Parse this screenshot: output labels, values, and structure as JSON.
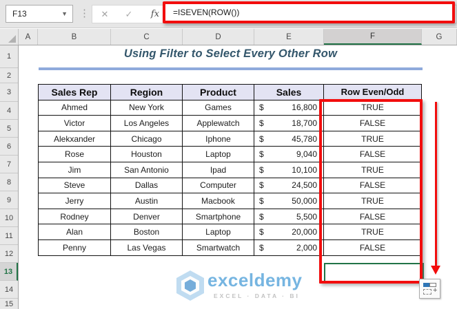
{
  "name_box_value": "F13",
  "formula_bar": {
    "formula": "=ISEVEN(ROW())",
    "cancel_icon": "✕",
    "enter_icon": "✓",
    "fx_icon": "fx",
    "menu_dots": "⋮"
  },
  "selection": {
    "active_cell": "F13",
    "selected_column": "F",
    "selected_row": "13"
  },
  "column_headers": [
    "A",
    "B",
    "C",
    "D",
    "E",
    "F",
    "G"
  ],
  "row_headers": [
    "1",
    "2",
    "3",
    "4",
    "5",
    "6",
    "7",
    "8",
    "9",
    "10",
    "11",
    "12",
    "13",
    "14",
    "15"
  ],
  "sheet": {
    "title": "Using Filter to Select Every Other Row",
    "table": {
      "headers": [
        "Sales Rep",
        "Region",
        "Product",
        "Sales",
        "Row Even/Odd"
      ],
      "rows": [
        {
          "rep": "Ahmed",
          "region": "New York",
          "product": "Games",
          "currency": "$",
          "sales": "16,800",
          "row_even_odd": "TRUE"
        },
        {
          "rep": "Victor",
          "region": "Los Angeles",
          "product": "Applewatch",
          "currency": "$",
          "sales": "18,700",
          "row_even_odd": "FALSE"
        },
        {
          "rep": "Alekxander",
          "region": "Chicago",
          "product": "Iphone",
          "currency": "$",
          "sales": "45,780",
          "row_even_odd": "TRUE"
        },
        {
          "rep": "Rose",
          "region": "Houston",
          "product": "Laptop",
          "currency": "$",
          "sales": "9,040",
          "row_even_odd": "FALSE"
        },
        {
          "rep": "Jim",
          "region": "San Antonio",
          "product": "Ipad",
          "currency": "$",
          "sales": "10,100",
          "row_even_odd": "TRUE"
        },
        {
          "rep": "Steve",
          "region": "Dallas",
          "product": "Computer",
          "currency": "$",
          "sales": "24,500",
          "row_even_odd": "FALSE"
        },
        {
          "rep": "Jerry",
          "region": "Austin",
          "product": "Macbook",
          "currency": "$",
          "sales": "50,000",
          "row_even_odd": "TRUE"
        },
        {
          "rep": "Rodney",
          "region": "Denver",
          "product": "Smartphone",
          "currency": "$",
          "sales": "5,500",
          "row_even_odd": "FALSE"
        },
        {
          "rep": "Alan",
          "region": "Boston",
          "product": "Laptop",
          "currency": "$",
          "sales": "20,000",
          "row_even_odd": "TRUE"
        },
        {
          "rep": "Penny",
          "region": "Las Vegas",
          "product": "Smartwatch",
          "currency": "$",
          "sales": "2,000",
          "row_even_odd": "FALSE"
        }
      ]
    }
  },
  "watermark": {
    "brand": "exceldemy",
    "tagline": "EXCEL · DATA · BI"
  },
  "colors": {
    "annotation-red": "#f20d0d",
    "selection-green": "#217346",
    "title-blue": "#33566b",
    "title-underline": "#8faadc",
    "header-fill": "#e3e3f3",
    "watermark-blue": "#50a0d8"
  }
}
